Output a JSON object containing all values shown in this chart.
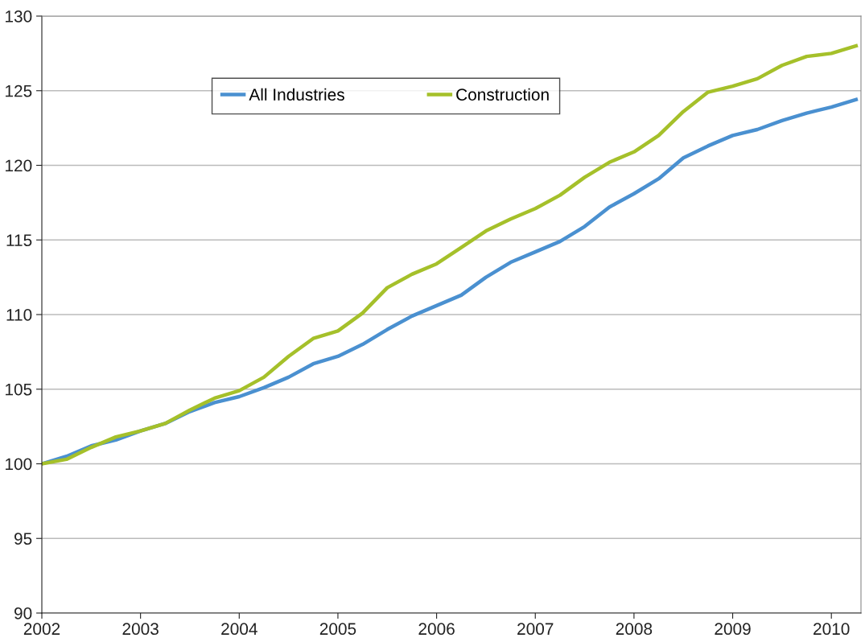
{
  "chart_data": {
    "type": "line",
    "x": [
      2002,
      2002.25,
      2002.5,
      2002.75,
      2003,
      2003.25,
      2003.5,
      2003.75,
      2004,
      2004.25,
      2004.5,
      2004.75,
      2005,
      2005.25,
      2005.5,
      2005.75,
      2006,
      2006.25,
      2006.5,
      2006.75,
      2007,
      2007.25,
      2007.5,
      2007.75,
      2008,
      2008.25,
      2008.5,
      2008.75,
      2009,
      2009.25,
      2009.5,
      2009.75,
      2010,
      2010.25
    ],
    "series": [
      {
        "name": "All Industries",
        "color": "#4a90d0",
        "values": [
          100,
          100.5,
          101.2,
          101.6,
          102.2,
          102.7,
          103.5,
          104.1,
          104.5,
          105.1,
          105.8,
          106.7,
          107.2,
          108.0,
          109.0,
          109.9,
          110.6,
          111.3,
          112.5,
          113.5,
          114.2,
          114.9,
          115.9,
          117.2,
          118.1,
          119.1,
          120.5,
          121.3,
          122.0,
          122.4,
          123.0,
          123.5,
          123.9,
          124.4
        ]
      },
      {
        "name": "Construction",
        "color": "#a5c02a",
        "values": [
          100,
          100.3,
          101.1,
          101.8,
          102.2,
          102.7,
          103.6,
          104.4,
          104.9,
          105.8,
          107.2,
          108.4,
          108.9,
          110.1,
          111.8,
          112.7,
          113.4,
          114.5,
          115.6,
          116.4,
          117.1,
          118.0,
          119.2,
          120.2,
          120.9,
          122.0,
          123.6,
          124.9,
          125.3,
          125.8,
          126.7,
          127.3,
          127.5,
          128.0
        ]
      }
    ],
    "xlim": [
      2002,
      2010.3
    ],
    "xticks": [
      2002,
      2003,
      2004,
      2005,
      2006,
      2007,
      2008,
      2009,
      2010
    ],
    "ylim": [
      90,
      130
    ],
    "yticks": [
      90,
      95,
      100,
      105,
      110,
      115,
      120,
      125,
      130
    ],
    "grid": "y",
    "legend": "top",
    "marker": "none",
    "line_style": "solid"
  }
}
